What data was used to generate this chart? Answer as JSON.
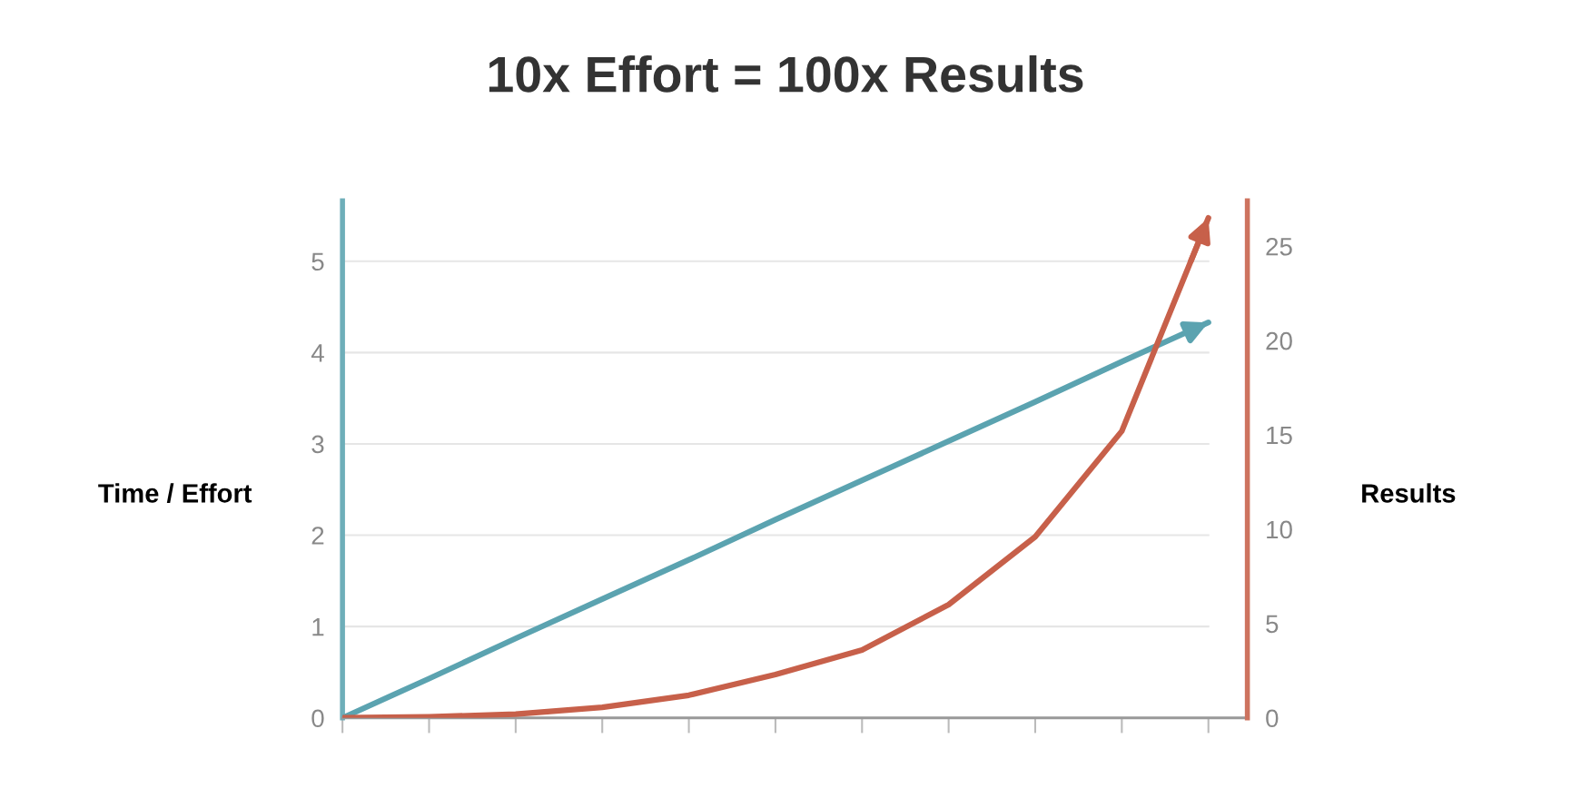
{
  "chart_data": {
    "type": "line",
    "title": "10x Effort = 100x Results",
    "ylabel": "Time / Effort",
    "y2label": "Results",
    "categories": [
      null,
      null,
      null,
      null,
      null,
      null,
      null,
      null,
      null,
      null,
      null
    ],
    "series": [
      {
        "color": "#5ba3b0",
        "values": [
          0,
          0.43,
          0.87,
          1.3,
          1.73,
          2.17,
          2.6,
          3.03,
          3.46,
          3.9,
          4.33
        ]
      },
      {
        "color": "#c7604a",
        "axis": "y2",
        "values": [
          0,
          0.05,
          0.2,
          0.56,
          1.2,
          2.3,
          3.6,
          6.0,
          9.6,
          15.2,
          26.5
        ]
      }
    ],
    "ylim": [
      0,
      5.66
    ],
    "yticks": [
      0,
      1,
      2,
      3,
      4,
      5
    ],
    "y2lim": [
      0,
      27.4
    ],
    "y2ticks": [
      0,
      5,
      10,
      15,
      20,
      25
    ],
    "grid": "y",
    "tick_labels": "y",
    "marker": "none",
    "line_style": "solid"
  }
}
